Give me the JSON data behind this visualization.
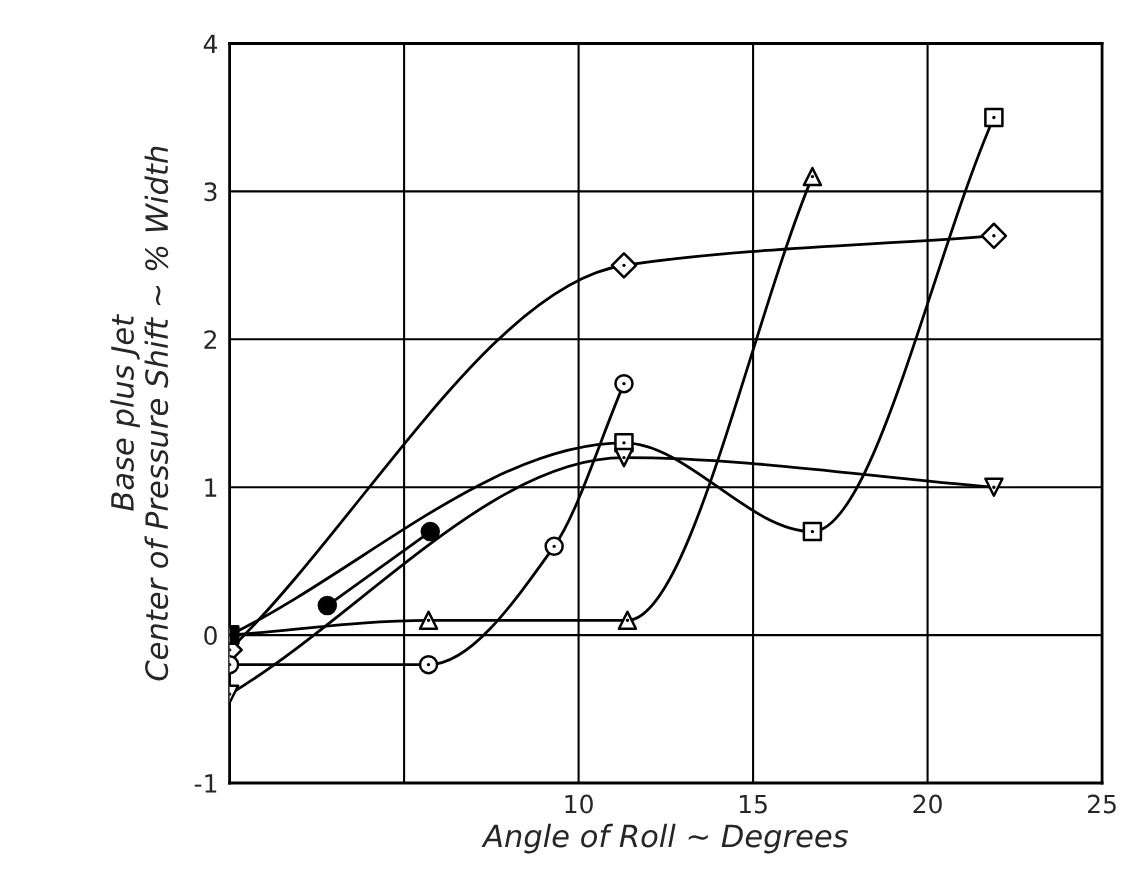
{
  "chart_data": {
    "type": "line",
    "xlabel": "Angle of Roll ~ Degrees",
    "ylabel": "Base plus Jet\nCenter of Pressure Shift ~ % Width",
    "xlim": [
      0,
      25
    ],
    "ylim": [
      -1,
      4
    ],
    "xticks": [
      {
        "value": 0,
        "label": null
      },
      {
        "value": 5,
        "label": null
      },
      10,
      15,
      20,
      25
    ],
    "yticks": [
      -1,
      0,
      1,
      2,
      3,
      4
    ],
    "grid": true,
    "series": [
      {
        "color": "#000000",
        "marker": "diamond",
        "x": [
          0,
          11.3,
          21.9
        ],
        "values": [
          -0.1,
          2.5,
          2.7
        ]
      },
      {
        "color": "#010101",
        "marker": "square",
        "x": [
          0,
          11.3,
          16.7,
          21.9
        ],
        "values": [
          0,
          1.3,
          0.7,
          3.5
        ]
      },
      {
        "color": "#020202",
        "marker": "triangle",
        "x": [
          0,
          5.7,
          11.4,
          16.7
        ],
        "values": [
          0,
          0.1,
          0.1,
          3.1
        ]
      },
      {
        "color": "#030303",
        "marker": "triangle_down",
        "x": [
          0,
          11.3,
          21.9
        ],
        "values": [
          -0.4,
          1.2,
          1.0
        ]
      },
      {
        "color": "#040404",
        "marker": "circle",
        "x": [
          0,
          5.7,
          9.3,
          11.3
        ],
        "values": [
          -0.2,
          -0.2,
          0.6,
          1.7
        ]
      },
      {
        "color": "#050505",
        "marker": "circle",
        "colors": [
          "#000000",
          "#000000"
        ],
        "x": [
          2.8,
          5.75
        ],
        "values": [
          0.2,
          0.7
        ]
      },
      {
        "type": "scatter",
        "color": "#000000",
        "marker": "square",
        "colors": [
          "#000000"
        ],
        "x": [
          0
        ],
        "values": [
          0
        ]
      }
    ]
  }
}
